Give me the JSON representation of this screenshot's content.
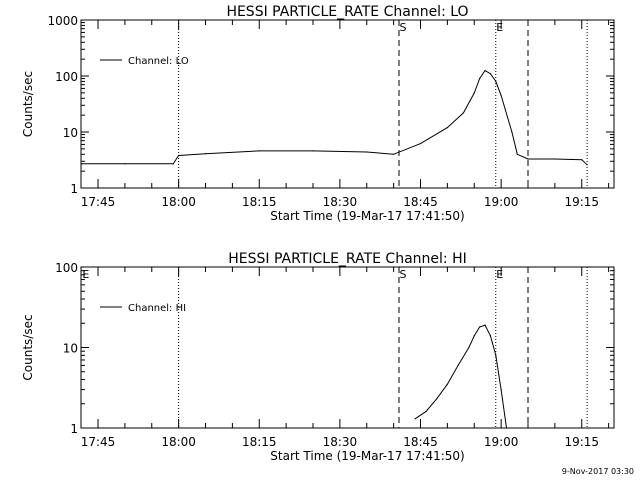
{
  "footer": {
    "timestamp": "9-Nov-2017 03:30"
  },
  "chart_data": [
    {
      "type": "line",
      "title": "HESSI PARTICLE_RATE Channel: LO",
      "xlabel": "Start Time (19-Mar-17 17:41:50)",
      "ylabel": "Counts/sec",
      "y_scale": "log",
      "xlim": [
        "17:41:50",
        "19:21:00"
      ],
      "ylim": [
        1,
        1000
      ],
      "x_ticks": [
        "17:45",
        "18:00",
        "18:15",
        "18:30",
        "18:45",
        "19:00",
        "19:15"
      ],
      "y_ticks": [
        "1",
        "10",
        "100",
        "1000"
      ],
      "legend": {
        "placement": "top-left",
        "entries": [
          "Channel: LO"
        ]
      },
      "markers": [
        {
          "time": "18:00",
          "label": "",
          "style": "dotted"
        },
        {
          "time": "18:41",
          "label": "S",
          "style": "dashed"
        },
        {
          "time": "18:59",
          "label": "E",
          "style": "dotted"
        },
        {
          "time": "19:05",
          "label": "",
          "style": "dashed"
        },
        {
          "time": "19:16",
          "label": "",
          "style": "dotted"
        }
      ],
      "series": [
        {
          "name": "Channel: LO",
          "x": [
            "17:42",
            "17:50",
            "17:59",
            "18:00",
            "18:05",
            "18:15",
            "18:25",
            "18:35",
            "18:40",
            "18:45",
            "18:50",
            "18:53",
            "18:55",
            "18:56",
            "18:57",
            "18:58",
            "18:59",
            "19:00",
            "19:02",
            "19:03",
            "19:05",
            "19:10",
            "19:15",
            "19:16"
          ],
          "y": [
            2.7,
            2.7,
            2.7,
            3.8,
            4.1,
            4.6,
            4.6,
            4.4,
            4.0,
            6.2,
            12,
            22,
            50,
            90,
            125,
            110,
            80,
            45,
            10,
            4,
            3.3,
            3.3,
            3.2,
            2.6
          ]
        }
      ]
    },
    {
      "type": "line",
      "title": "HESSI PARTICLE_RATE Channel: HI",
      "xlabel": "Start Time (19-Mar-17 17:41:50)",
      "ylabel": "Counts/sec",
      "y_scale": "log",
      "xlim": [
        "17:41:50",
        "19:21:00"
      ],
      "ylim": [
        1,
        100
      ],
      "x_ticks": [
        "17:45",
        "18:00",
        "18:15",
        "18:30",
        "18:45",
        "19:00",
        "19:15"
      ],
      "y_ticks": [
        "1",
        "10",
        "100"
      ],
      "legend": {
        "placement": "top-left",
        "entries": [
          "Channel: HI"
        ]
      },
      "markers": [
        {
          "time": "17:42",
          "label": "E",
          "style": "none"
        },
        {
          "time": "18:00",
          "label": "",
          "style": "dotted"
        },
        {
          "time": "18:41",
          "label": "S",
          "style": "dashed"
        },
        {
          "time": "18:59",
          "label": "E",
          "style": "dotted"
        },
        {
          "time": "19:05",
          "label": "",
          "style": "dashed"
        },
        {
          "time": "19:16",
          "label": "",
          "style": "dotted"
        }
      ],
      "series": [
        {
          "name": "Channel: HI",
          "x": [
            "18:44",
            "18:46",
            "18:48",
            "18:50",
            "18:52",
            "18:54",
            "18:55",
            "18:56",
            "18:57",
            "18:58",
            "18:59",
            "19:00",
            "19:01"
          ],
          "y": [
            1.3,
            1.6,
            2.3,
            3.5,
            6,
            10,
            14,
            18,
            19,
            14,
            8,
            3,
            1
          ]
        }
      ]
    }
  ]
}
